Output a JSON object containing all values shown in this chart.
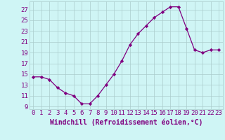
{
  "x": [
    0,
    1,
    2,
    3,
    4,
    5,
    6,
    7,
    8,
    9,
    10,
    11,
    12,
    13,
    14,
    15,
    16,
    17,
    18,
    19,
    20,
    21,
    22,
    23
  ],
  "y": [
    14.5,
    14.5,
    14.0,
    12.5,
    11.5,
    11.0,
    9.5,
    9.5,
    11.0,
    13.0,
    15.0,
    17.5,
    20.5,
    22.5,
    24.0,
    25.5,
    26.5,
    27.5,
    27.5,
    23.5,
    19.5,
    19.0,
    19.5,
    19.5
  ],
  "line_color": "#800080",
  "marker": "D",
  "marker_size": 2.2,
  "xlabel": "Windchill (Refroidissement éolien,°C)",
  "ylabel": "",
  "xlim": [
    -0.5,
    23.5
  ],
  "ylim": [
    8.5,
    28.5
  ],
  "yticks": [
    9,
    11,
    13,
    15,
    17,
    19,
    21,
    23,
    25,
    27
  ],
  "xticks": [
    0,
    1,
    2,
    3,
    4,
    5,
    6,
    7,
    8,
    9,
    10,
    11,
    12,
    13,
    14,
    15,
    16,
    17,
    18,
    19,
    20,
    21,
    22,
    23
  ],
  "background_color": "#cff5f5",
  "grid_color": "#aacccc",
  "label_color": "#800080",
  "tick_fontsize": 6.5,
  "xlabel_fontsize": 7.0,
  "linewidth": 0.9
}
